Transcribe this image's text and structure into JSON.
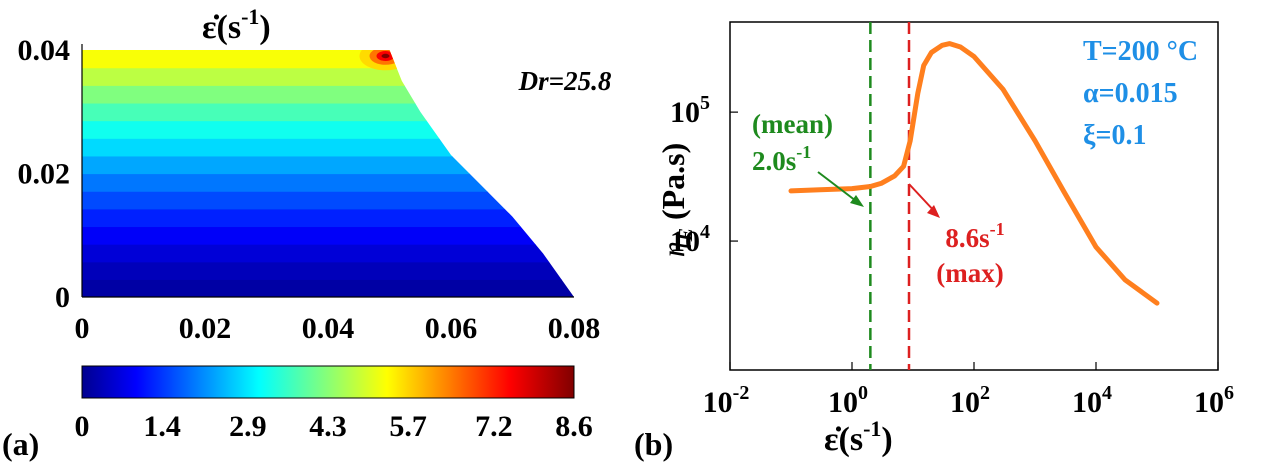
{
  "chart_data": [
    {
      "type": "heatmap",
      "panel_label": "(a)",
      "title": "ε̇(s",
      "title_exp": "-1",
      "title_close": ")",
      "annotation": "Dr=25.8",
      "xlim": [
        0,
        0.08
      ],
      "ylim": [
        0,
        0.04
      ],
      "x_ticks": [
        "0",
        "0.02",
        "0.04",
        "0.06",
        "0.08"
      ],
      "y_ticks": [
        "0",
        "0.02",
        "0.04"
      ],
      "colorbar": {
        "range": [
          0,
          8.6
        ],
        "ticks": [
          "0",
          "1.4",
          "2.9",
          "4.3",
          "5.7",
          "7.2",
          "8.6"
        ],
        "colormap": "jet"
      },
      "boundary": [
        [
          0.05,
          0.04
        ],
        [
          0.052,
          0.035
        ],
        [
          0.055,
          0.03
        ],
        [
          0.06,
          0.023
        ],
        [
          0.065,
          0.018
        ],
        [
          0.07,
          0.013
        ],
        [
          0.075,
          0.007
        ],
        [
          0.08,
          0
        ]
      ],
      "hotspot": {
        "x": 0.05,
        "y": 0.04,
        "value": 8.6
      }
    },
    {
      "type": "line",
      "panel_label": "(b)",
      "xlabel": "ε̇(s",
      "xlabel_exp": "-1",
      "xlabel_close": ")",
      "ylabel": "η",
      "ylabel_sub": "E",
      "ylabel_unit": " (Pa.s)",
      "x_scale": "log",
      "y_scale": "log",
      "xlim": [
        0.01,
        1000000
      ],
      "ylim": [
        1000,
        500000
      ],
      "x_ticks": [
        {
          "base": "10",
          "exp": "-2"
        },
        {
          "base": "10",
          "exp": "0"
        },
        {
          "base": "10",
          "exp": "2"
        },
        {
          "base": "10",
          "exp": "4"
        },
        {
          "base": "10",
          "exp": "6"
        }
      ],
      "y_ticks": [
        {
          "value": 10000,
          "base": "10",
          "exp": "4"
        },
        {
          "value": 100000,
          "base": "10",
          "exp": "5"
        }
      ],
      "series": [
        {
          "color": "#ff7f1e",
          "x": [
            0.1,
            0.3,
            1,
            2,
            3,
            5,
            7,
            9,
            12,
            15,
            20,
            30,
            40,
            60,
            100,
            300,
            1000,
            3000,
            10000,
            30000,
            100000
          ],
          "y": [
            24500,
            25000,
            25500,
            26500,
            28000,
            32000,
            38000,
            60000,
            140000,
            230000,
            290000,
            330000,
            340000,
            320000,
            270000,
            150000,
            60000,
            24000,
            9000,
            5000,
            3300
          ]
        }
      ],
      "vlines": [
        {
          "x": 2.0,
          "color": "#1e8a1e",
          "label": "(mean)",
          "value_label": "2.0s",
          "value_exp": "-1"
        },
        {
          "x": 8.6,
          "color": "#dd2020",
          "label": "(max)",
          "value_label": "8.6s",
          "value_exp": "-1"
        }
      ],
      "params": [
        "T=200 °C",
        "α=0.015",
        "ξ=0.1"
      ],
      "params_color": "#1e8fe6"
    }
  ]
}
